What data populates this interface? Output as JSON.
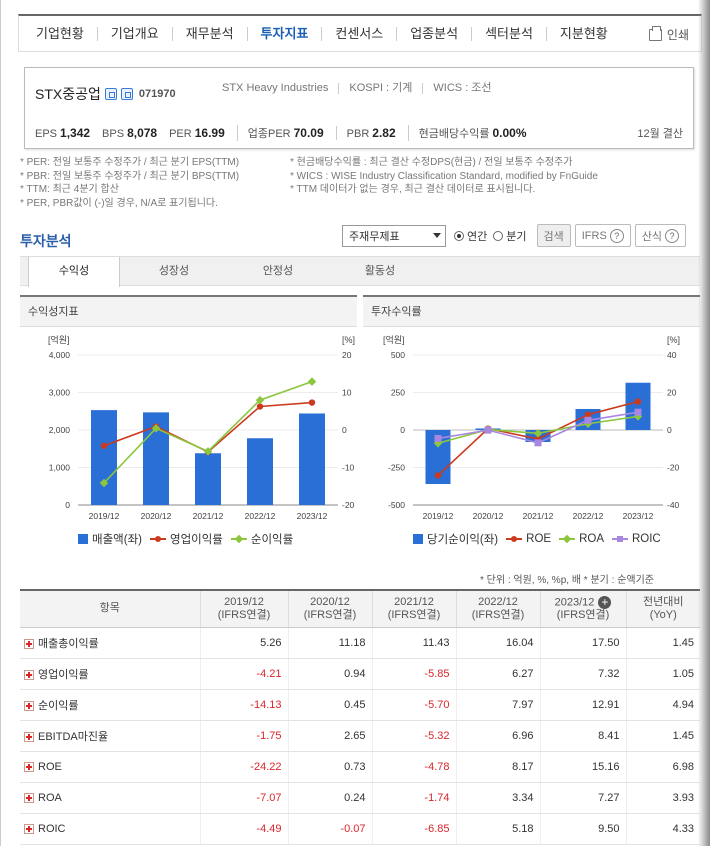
{
  "nav": {
    "items": [
      "기업현황",
      "기업개요",
      "재무분석",
      "투자지표",
      "컨센서스",
      "업종분석",
      "섹터분석",
      "지분현황"
    ],
    "active_index": 3,
    "print_label": "인쇄"
  },
  "company": {
    "name": "STX중공업",
    "code": "071970",
    "english_name": "STX Heavy Industries",
    "market": "KOSPI : 기계",
    "wics": "WICS : 조선",
    "indicators": [
      {
        "label": "EPS",
        "value": "1,342"
      },
      {
        "label": "BPS",
        "value": "8,078"
      },
      {
        "label": "PER",
        "value": "16.99"
      },
      {
        "label": "업종PER",
        "value": "70.09"
      },
      {
        "label": "PBR",
        "value": "2.82"
      },
      {
        "label": "현금배당수익률",
        "value": "0.00%"
      }
    ],
    "fiscal": "12월 결산"
  },
  "notes": {
    "left": [
      "* PER: 전일 보통주 수정주가 / 최근 분기 EPS(TTM)",
      "* PBR: 전일 보통주 수정주가 / 최근 분기 BPS(TTM)",
      "* TTM: 최근 4분기 합산",
      "* PER, PBR값이 (-)일 경우, N/A로 표기됩니다."
    ],
    "right": [
      "* 현금배당수익률 : 최근 결산 수정DPS(현금) / 전일 보통주 수정주가",
      "* WICS : WISE Industry Classification Standard, modified by FnGuide",
      "* TTM 데이터가 없는 경우, 최근 결산 데이터로 표시됩니다."
    ]
  },
  "invest": {
    "title": "투자분석",
    "select_value": "주재무제표",
    "radio_annual": "연간",
    "radio_quarter": "분기",
    "search_label": "검색",
    "ifrs_label": "IFRS",
    "formula_label": "산식",
    "tabs": [
      "수익성",
      "성장성",
      "안정성",
      "활동성"
    ]
  },
  "colors": {
    "bar": "#2a6fd6",
    "line_red": "#cc3a1e",
    "line_green": "#8cc63f",
    "line_purple": "#a887e0",
    "neg": "#d9262b"
  },
  "chart_data": [
    {
      "type": "bar",
      "title": "수익성지표",
      "categories": [
        "2019/12",
        "2020/12",
        "2021/12",
        "2022/12",
        "2023/12"
      ],
      "left_unit": "[억원]",
      "right_unit": "[%]",
      "left_ylim": [
        0,
        4000
      ],
      "left_ticks": [
        "4,000",
        "3,000",
        "2,000",
        "1,000",
        "0"
      ],
      "right_ylim": [
        -20,
        20
      ],
      "right_ticks": [
        "20",
        "10",
        "0",
        "-10",
        "-20"
      ],
      "series": [
        {
          "name": "매출액(좌)",
          "kind": "bar",
          "axis": "left",
          "values": [
            2530,
            2470,
            1380,
            1780,
            2440
          ]
        },
        {
          "name": "영업이익률",
          "kind": "line",
          "axis": "right",
          "values": [
            -4.21,
            0.94,
            -5.85,
            6.27,
            7.32
          ]
        },
        {
          "name": "순이익률",
          "kind": "line",
          "axis": "right",
          "values": [
            -14.13,
            0.45,
            -5.7,
            7.97,
            12.91
          ]
        }
      ]
    },
    {
      "type": "bar",
      "title": "투자수익률",
      "categories": [
        "2019/12",
        "2020/12",
        "2021/12",
        "2022/12",
        "2023/12"
      ],
      "left_unit": "[억원]",
      "right_unit": "[%]",
      "left_ylim": [
        -500,
        500
      ],
      "left_ticks": [
        "500",
        "250",
        "0",
        "-250",
        "-500"
      ],
      "right_ylim": [
        -40,
        40
      ],
      "right_ticks": [
        "40",
        "20",
        "0",
        "-20",
        "-40"
      ],
      "series": [
        {
          "name": "당기순이익(좌)",
          "kind": "bar",
          "axis": "left",
          "values": [
            -360,
            10,
            -80,
            140,
            315
          ]
        },
        {
          "name": "ROE",
          "kind": "line",
          "axis": "right",
          "values": [
            -24.22,
            0.73,
            -4.78,
            8.17,
            15.16
          ]
        },
        {
          "name": "ROA",
          "kind": "line",
          "axis": "right",
          "values": [
            -7.07,
            0.24,
            -1.74,
            3.34,
            7.27
          ]
        },
        {
          "name": "ROIC",
          "kind": "line",
          "axis": "right",
          "values": [
            -4.49,
            -0.07,
            -6.85,
            5.18,
            9.5
          ]
        }
      ]
    }
  ],
  "unit_note": "* 단위 : 억원, %, %p, 배     * 분기 : 순액기준",
  "table": {
    "headers": [
      {
        "l1": "항목",
        "l2": ""
      },
      {
        "l1": "2019/12",
        "l2": "(IFRS연결)"
      },
      {
        "l1": "2020/12",
        "l2": "(IFRS연결)"
      },
      {
        "l1": "2021/12",
        "l2": "(IFRS연결)"
      },
      {
        "l1": "2022/12",
        "l2": "(IFRS연결)"
      },
      {
        "l1": "2023/12",
        "l2": "(IFRS연결)"
      },
      {
        "l1": "전년대비",
        "l2": "(YoY)"
      }
    ],
    "rows": [
      {
        "label": "매출총이익률",
        "values": [
          "5.26",
          "11.18",
          "11.43",
          "16.04",
          "17.50",
          "1.45"
        ]
      },
      {
        "label": "영업이익률",
        "values": [
          "-4.21",
          "0.94",
          "-5.85",
          "6.27",
          "7.32",
          "1.05"
        ]
      },
      {
        "label": "순이익률",
        "values": [
          "-14.13",
          "0.45",
          "-5.70",
          "7.97",
          "12.91",
          "4.94"
        ]
      },
      {
        "label": "EBITDA마진율",
        "values": [
          "-1.75",
          "2.65",
          "-5.32",
          "6.96",
          "8.41",
          "1.45"
        ]
      },
      {
        "label": "ROE",
        "values": [
          "-24.22",
          "0.73",
          "-4.78",
          "8.17",
          "15.16",
          "6.98"
        ]
      },
      {
        "label": "ROA",
        "values": [
          "-7.07",
          "0.24",
          "-1.74",
          "3.34",
          "7.27",
          "3.93"
        ]
      },
      {
        "label": "ROIC",
        "values": [
          "-4.49",
          "-0.07",
          "-6.85",
          "5.18",
          "9.50",
          "4.33"
        ]
      }
    ]
  }
}
